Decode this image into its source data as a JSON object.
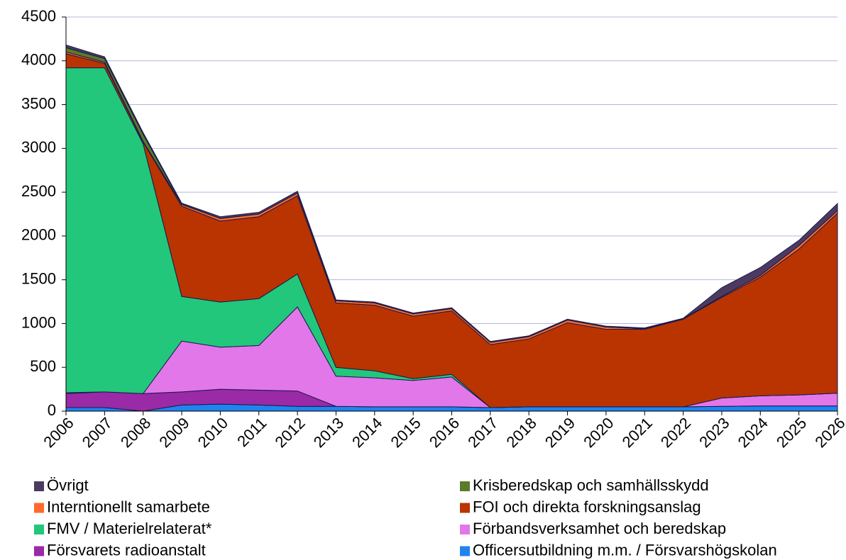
{
  "chart_data": {
    "type": "stacked_area",
    "categories": [
      "2006",
      "2007",
      "2008",
      "2009",
      "2010",
      "2011",
      "2012",
      "2013",
      "2014",
      "2015",
      "2016",
      "2017",
      "2018",
      "2019",
      "2020",
      "2021",
      "2022",
      "2023",
      "2024",
      "2025",
      "2026"
    ],
    "series": [
      {
        "name": "Officersutbildning m.m. / Försvarshögskolan",
        "color": "#1f84f0",
        "values": [
          40,
          40,
          0,
          70,
          80,
          70,
          55,
          55,
          50,
          50,
          50,
          40,
          50,
          50,
          50,
          50,
          50,
          55,
          60,
          60,
          60
        ]
      },
      {
        "name": "Försvarets radioanstalt",
        "color": "#9a2aa6",
        "values": [
          160,
          180,
          200,
          150,
          170,
          170,
          175,
          0,
          0,
          0,
          0,
          0,
          0,
          0,
          0,
          0,
          0,
          0,
          0,
          0,
          0
        ]
      },
      {
        "name": "Förbandsverksamhet och beredskap",
        "color": "#e277ea",
        "values": [
          10,
          0,
          0,
          580,
          480,
          510,
          960,
          345,
          330,
          300,
          340,
          0,
          0,
          0,
          0,
          0,
          0,
          95,
          115,
          125,
          145
        ]
      },
      {
        "name": "FMV / Materielrelaterat*",
        "color": "#22c77c",
        "values": [
          3710,
          3700,
          2850,
          510,
          515,
          535,
          375,
          100,
          80,
          20,
          30,
          0,
          0,
          0,
          0,
          0,
          0,
          0,
          0,
          0,
          0
        ]
      },
      {
        "name": "FOI och direkta forskningsanslag",
        "color": "#b93400",
        "values": [
          160,
          50,
          20,
          1030,
          925,
          935,
          895,
          735,
          750,
          715,
          725,
          720,
          775,
          960,
          885,
          885,
          1000,
          1150,
          1355,
          1665,
          2055
        ]
      },
      {
        "name": "Interntionellt samarbete",
        "color": "#ff6a2c",
        "values": [
          20,
          15,
          10,
          20,
          30,
          30,
          30,
          25,
          25,
          25,
          25,
          25,
          25,
          30,
          25,
          5,
          5,
          10,
          20,
          40,
          30
        ]
      },
      {
        "name": "Krisberedskap och samhällsskydd",
        "color": "#5c7a2c",
        "values": [
          50,
          40,
          80,
          5,
          0,
          0,
          0,
          0,
          0,
          0,
          0,
          0,
          0,
          0,
          0,
          0,
          0,
          0,
          0,
          0,
          0
        ]
      },
      {
        "name": "Övrigt",
        "color": "#4b3b60",
        "values": [
          30,
          20,
          20,
          10,
          20,
          20,
          20,
          10,
          10,
          10,
          10,
          10,
          10,
          10,
          10,
          10,
          5,
          100,
          90,
          60,
          80
        ]
      }
    ],
    "ylim": [
      0,
      4500
    ],
    "yticks": [
      0,
      500,
      1000,
      1500,
      2000,
      2500,
      3000,
      3500,
      4000,
      4500
    ],
    "grid": true
  }
}
